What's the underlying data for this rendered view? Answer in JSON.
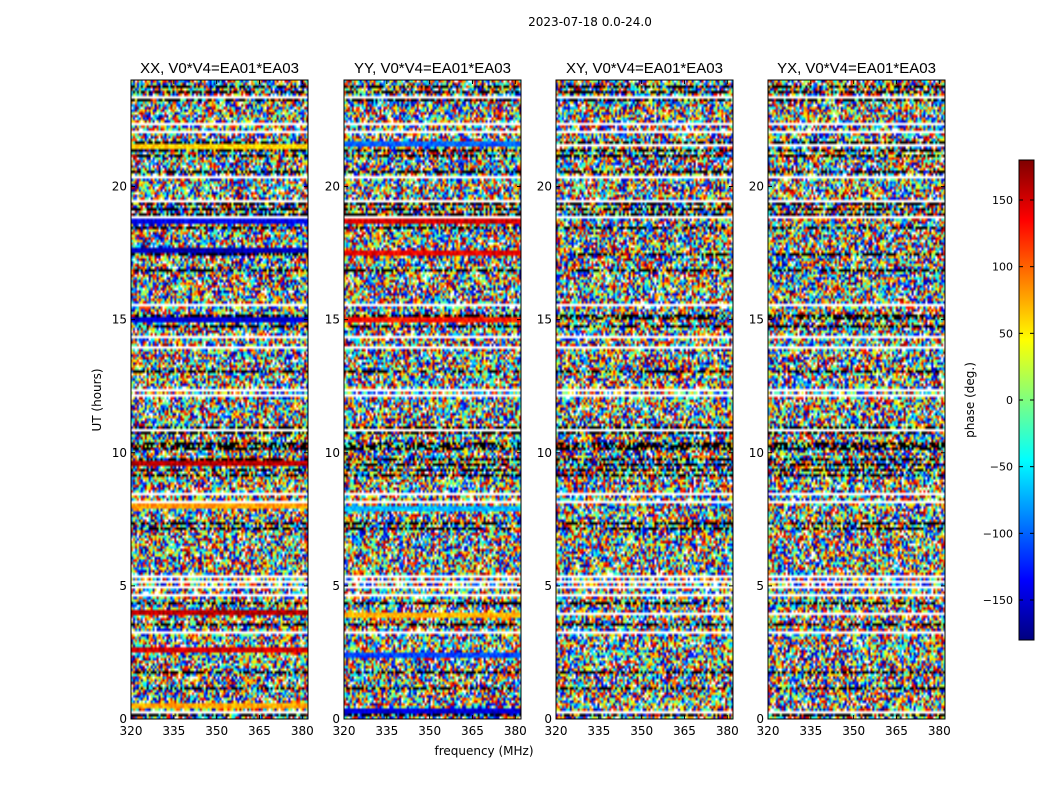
{
  "chart_data": {
    "type": "heatmap",
    "suptitle": "2023-07-18 0.0-24.0",
    "xlabel": "frequency (MHz)",
    "ylabel": "UT (hours)",
    "xticks": [
      "320",
      "335",
      "350",
      "365",
      "380"
    ],
    "xtick_values": [
      320,
      335,
      350,
      365,
      380
    ],
    "xlim": [
      320,
      382
    ],
    "yticks": [
      "0",
      "5",
      "10",
      "15",
      "20"
    ],
    "ytick_values": [
      0,
      5,
      10,
      15,
      20
    ],
    "ylim": [
      0,
      24
    ],
    "colorbar": {
      "label": "phase (deg.)",
      "range": [
        -180,
        180
      ],
      "ticks": [
        "150",
        "100",
        "50",
        "0",
        "−50",
        "−100",
        "−150"
      ],
      "tick_values": [
        150,
        100,
        50,
        0,
        -50,
        -100,
        -150
      ],
      "colormap": [
        "#00007f",
        "#0000ff",
        "#007fff",
        "#00ffff",
        "#7fff7f",
        "#ffff00",
        "#ff7f00",
        "#ff0000",
        "#7f0000"
      ]
    },
    "panels": [
      {
        "title": "XX, V0*V4=EA01*EA03",
        "band_summary": [
          {
            "ut": 0.4,
            "phase": 75
          },
          {
            "ut": 2.5,
            "phase": 150
          },
          {
            "ut": 3.9,
            "phase": 160
          },
          {
            "ut": 7.9,
            "phase": 80
          },
          {
            "ut": 9.5,
            "phase": 160
          },
          {
            "ut": 14.9,
            "phase": -150
          },
          {
            "ut": 17.5,
            "phase": -160
          },
          {
            "ut": 18.6,
            "phase": -140
          },
          {
            "ut": 21.4,
            "phase": 60
          }
        ]
      },
      {
        "title": "YY, V0*V4=EA01*EA03",
        "band_summary": [
          {
            "ut": 0.3,
            "phase": -150
          },
          {
            "ut": 2.3,
            "phase": -110
          },
          {
            "ut": 3.8,
            "phase": 70
          },
          {
            "ut": 7.8,
            "phase": -70
          },
          {
            "ut": 14.9,
            "phase": 130
          },
          {
            "ut": 17.4,
            "phase": 140
          },
          {
            "ut": 18.6,
            "phase": 150
          },
          {
            "ut": 21.5,
            "phase": -100
          }
        ]
      },
      {
        "title": "XY, V0*V4=EA01*EA03",
        "band_summary": []
      },
      {
        "title": "YX, V0*V4=EA01*EA03",
        "band_summary": []
      }
    ]
  }
}
